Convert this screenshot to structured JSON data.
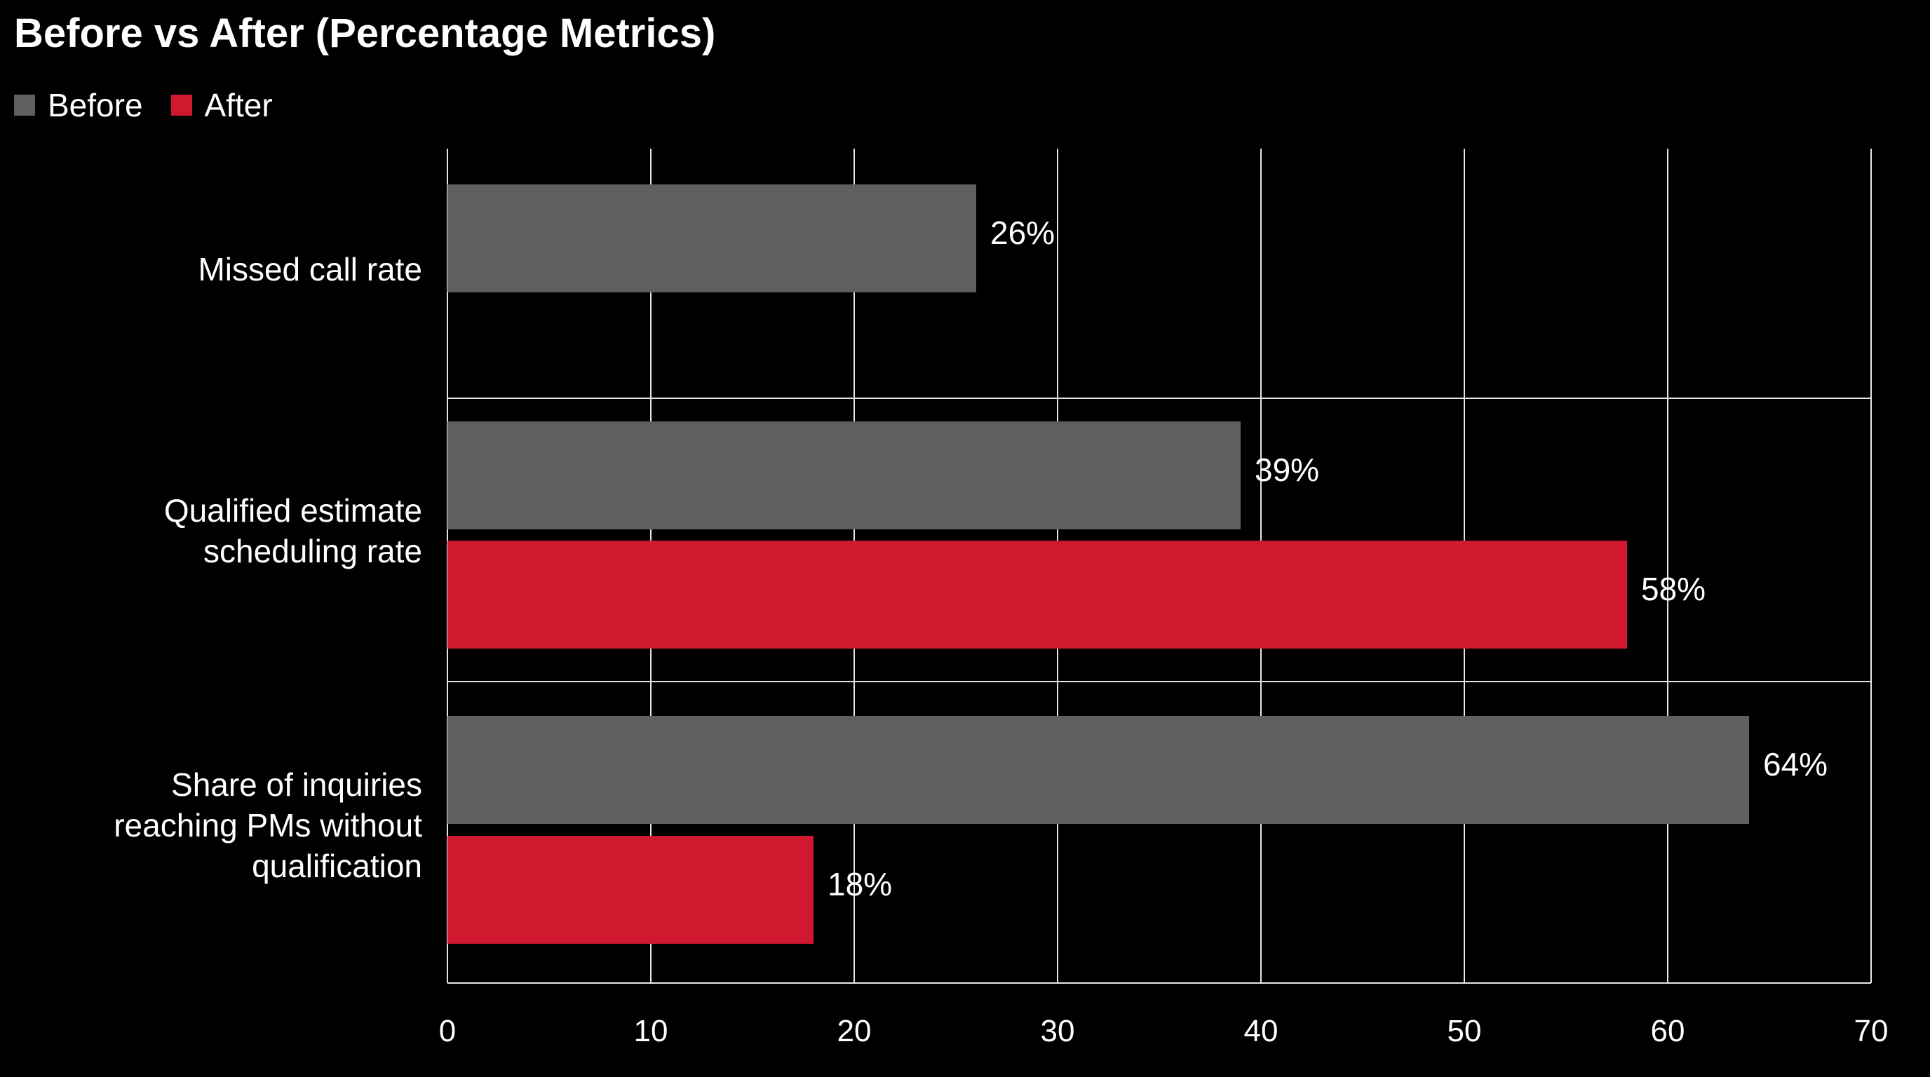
{
  "colors": {
    "background": "#000000",
    "before": "#5f5f5f",
    "after": "#d0182f",
    "grid": "#e6e6e6",
    "text": "#ffffff"
  },
  "chart_data": {
    "type": "bar",
    "orientation": "horizontal",
    "title": "Before vs After (Percentage Metrics)",
    "xlabel": "",
    "ylabel": "",
    "xlim": [
      0,
      70
    ],
    "xticks": [
      "0",
      "10",
      "20",
      "30",
      "40",
      "50",
      "60",
      "70"
    ],
    "grid": true,
    "legend_position": "top-left",
    "categories": [
      [
        "Missed call rate"
      ],
      [
        "Qualified estimate",
        "scheduling rate"
      ],
      [
        "Share of inquiries",
        "reaching PMs without",
        "qualification"
      ]
    ],
    "series": [
      {
        "name": "Before",
        "color": "#5f5f5f",
        "values": [
          26,
          39,
          64
        ],
        "labels": [
          "26%",
          "39%",
          "64%"
        ]
      },
      {
        "name": "After",
        "color": "#d0182f",
        "values": [
          null,
          58,
          18
        ],
        "labels": [
          "",
          "58%",
          "18%"
        ]
      }
    ]
  }
}
